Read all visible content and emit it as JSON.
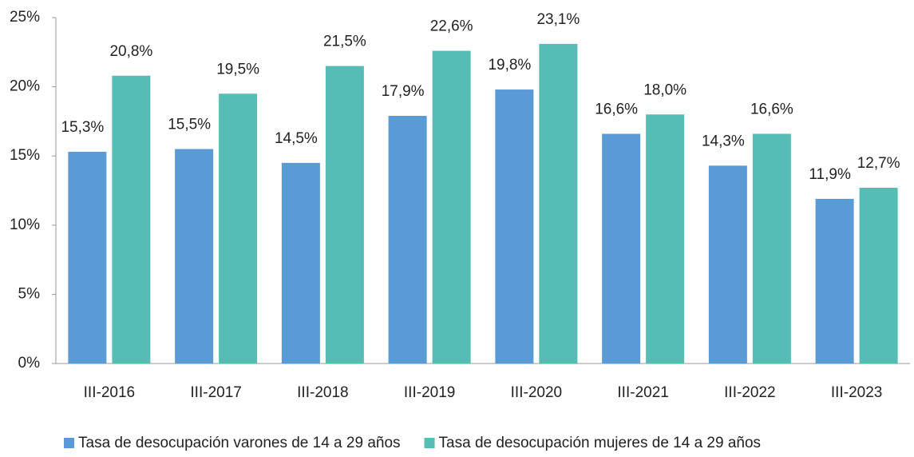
{
  "chart_data": {
    "type": "bar",
    "categories": [
      "III-2016",
      "III-2017",
      "III-2018",
      "III-2019",
      "III-2020",
      "III-2021",
      "III-2022",
      "III-2023"
    ],
    "series": [
      {
        "name": "Tasa de desocupación varones de 14 a 29 años",
        "color": "#5b9bd5",
        "values": [
          15.3,
          15.5,
          14.5,
          17.9,
          19.8,
          16.6,
          14.3,
          11.9
        ],
        "value_labels": [
          "15,3%",
          "15,5%",
          "14,5%",
          "17,9%",
          "19,8%",
          "16,6%",
          "14,3%",
          "11,9%"
        ]
      },
      {
        "name": "Tasa de desocupación mujeres de 14 a 29 años",
        "color": "#55bdb4",
        "values": [
          20.8,
          19.5,
          21.5,
          22.6,
          23.1,
          18.0,
          16.6,
          12.7
        ],
        "value_labels": [
          "20,8%",
          "19,5%",
          "21,5%",
          "22,6%",
          "23,1%",
          "18,0%",
          "16,6%",
          "12,7%"
        ]
      }
    ],
    "ylim": [
      0,
      25
    ],
    "yticks": [
      {
        "value": 0,
        "label": "0%"
      },
      {
        "value": 5,
        "label": "5%"
      },
      {
        "value": 10,
        "label": "10%"
      },
      {
        "value": 15,
        "label": "15%"
      },
      {
        "value": 20,
        "label": "20%"
      },
      {
        "value": 25,
        "label": "25%"
      }
    ],
    "grid": false,
    "legend": "bottom"
  }
}
